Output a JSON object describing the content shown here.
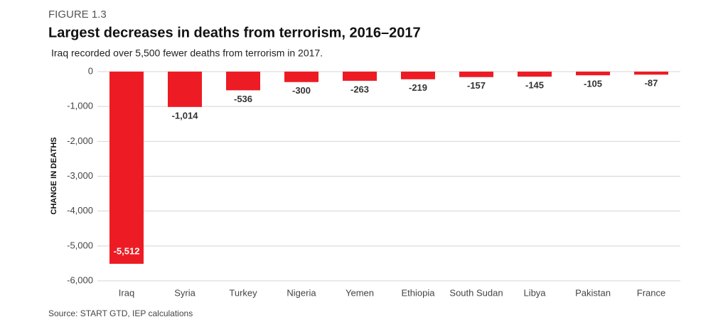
{
  "chart_data": {
    "type": "bar",
    "figure_label": "FIGURE 1.3",
    "title": "Largest decreases in deaths from terrorism, 2016–2017",
    "subtitle": "Iraq recorded over 5,500 fewer deaths from terrorism in 2017.",
    "y_label": "CHANGE IN DEATHS",
    "source": "Source: START GTD, IEP calculations",
    "categories": [
      "Iraq",
      "Syria",
      "Turkey",
      "Nigeria",
      "Yemen",
      "Ethiopia",
      "South Sudan",
      "Libya",
      "Pakistan",
      "France"
    ],
    "values": [
      -5512,
      -1014,
      -536,
      -300,
      -263,
      -219,
      -157,
      -145,
      -105,
      -87
    ],
    "value_labels": [
      "-5,512",
      "-1,014",
      "-536",
      "-300",
      "-263",
      "-219",
      "-157",
      "-145",
      "-105",
      "-87"
    ],
    "color": "#ed1c24",
    "ylim": [
      -6000,
      0
    ],
    "yticks": [
      0,
      {
        "value": -1000,
        "label": "-1,000"
      },
      {
        "value": -2000,
        "label": "-2,000"
      },
      {
        "value": -3000,
        "label": "-3,000"
      },
      {
        "value": -4000,
        "label": "-4,000"
      },
      {
        "value": -5000,
        "label": "-5,000"
      },
      {
        "value": -6000,
        "label": "-6,000"
      }
    ],
    "grid": true
  }
}
